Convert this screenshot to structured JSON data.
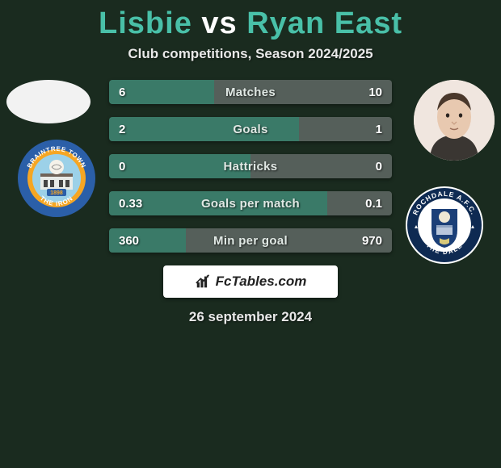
{
  "title": {
    "player1": "Lisbie",
    "vs": "vs",
    "player2": "Ryan East",
    "color_players": "#49c0a8",
    "color_vs": "#ffffff",
    "fontsize": 38
  },
  "subtitle": "Club competitions, Season 2024/2025",
  "date": "26 september 2024",
  "branding": {
    "text": "FcTables.com",
    "icon": "chart-bars-icon"
  },
  "background_color": "#1a2b1f",
  "bar_colors": {
    "left": "#3a7a68",
    "right": "#555f5a"
  },
  "stats": [
    {
      "label": "Matches",
      "left_val": "6",
      "right_val": "10",
      "left_pct": 37,
      "right_pct": 63
    },
    {
      "label": "Goals",
      "left_val": "2",
      "right_val": "1",
      "left_pct": 67,
      "right_pct": 33
    },
    {
      "label": "Hattricks",
      "left_val": "0",
      "right_val": "0",
      "left_pct": 50,
      "right_pct": 50
    },
    {
      "label": "Goals per match",
      "left_val": "0.33",
      "right_val": "0.1",
      "left_pct": 77,
      "right_pct": 23
    },
    {
      "label": "Min per goal",
      "left_val": "360",
      "right_val": "970",
      "left_pct": 27,
      "right_pct": 73
    }
  ],
  "avatars": {
    "left": {
      "name": "player-lisbie-avatar",
      "bg": "#f2f2f2"
    },
    "right": {
      "name": "player-ryan-east-avatar",
      "bg": "#f0e6df"
    }
  },
  "clubs": {
    "left": {
      "name": "braintree-town-badge",
      "text_top": "BRAINTREE TOWN",
      "text_bottom": "THE IRON",
      "year": "1898",
      "ring": "#2b5fa8",
      "mid": "#f6a623",
      "inner": "#9cd1e8",
      "text": "#ffffff"
    },
    "right": {
      "name": "rochdale-afc-badge",
      "text_top": "ROCHDALE A.F.C.",
      "text_bottom": "THE DALE",
      "ring": "#0e2a52",
      "inner": "#ffffff",
      "accent": "#1b3f78",
      "text": "#ffffff"
    }
  }
}
